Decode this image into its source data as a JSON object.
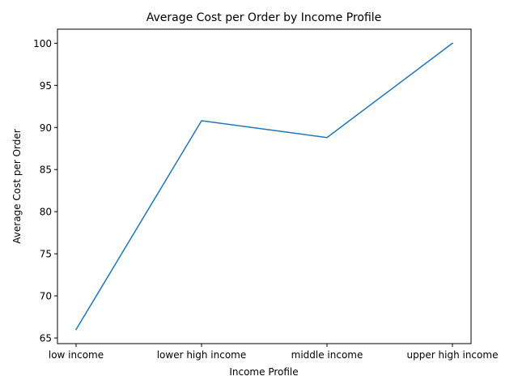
{
  "chart_data": {
    "type": "line",
    "title": "Average Cost per Order by Income Profile",
    "xlabel": "Income Profile",
    "ylabel": "Average Cost per Order",
    "categories": [
      "low income",
      "lower high income",
      "middle income",
      "upper high income"
    ],
    "series": [
      {
        "values": [
          66.0,
          90.8,
          88.8,
          100.0
        ],
        "color": "#1f77b4"
      }
    ],
    "ylim": [
      64.33,
      101.67
    ],
    "yticks": [
      65,
      70,
      75,
      80,
      85,
      90,
      95,
      100
    ],
    "grid": false,
    "legend": "none"
  }
}
